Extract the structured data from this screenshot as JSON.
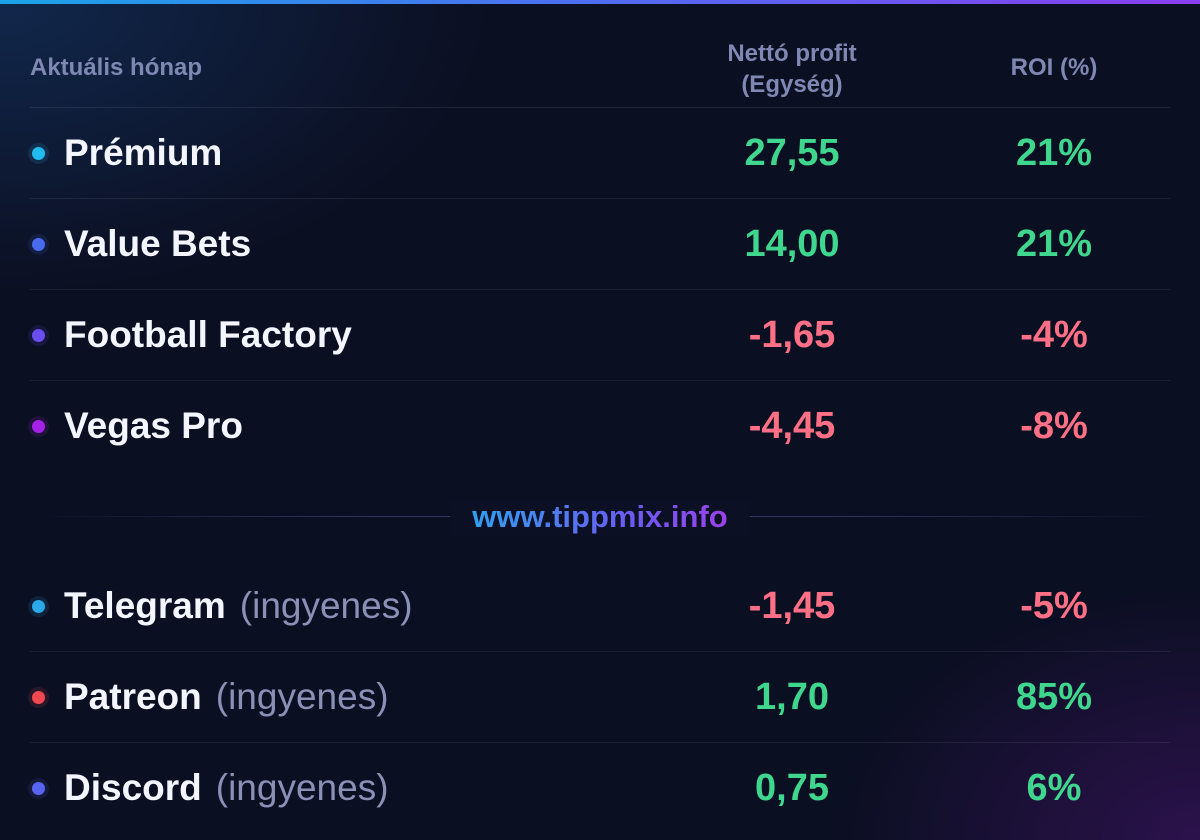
{
  "header": {
    "period_label": "Aktuális hónap",
    "profit_label_line1": "Nettó profit",
    "profit_label_line2": "(Egység)",
    "roi_label": "ROI (%)"
  },
  "paid_rows": [
    {
      "name": "Prémium",
      "profit": "27,55",
      "roi": "21%",
      "dot_color": "#22b8f0",
      "sign": "pos"
    },
    {
      "name": "Value Bets",
      "profit": "14,00",
      "roi": "21%",
      "dot_color": "#4a6af2",
      "sign": "pos"
    },
    {
      "name": "Football Factory",
      "profit": "-1,65",
      "roi": "-4%",
      "dot_color": "#6a4ef0",
      "sign": "neg"
    },
    {
      "name": "Vegas Pro",
      "profit": "-4,45",
      "roi": "-8%",
      "dot_color": "#a422e8",
      "sign": "neg"
    }
  ],
  "site_label": "www.tippmix.info",
  "free_rows": [
    {
      "name": "Telegram",
      "tag": "(ingyenes)",
      "profit": "-1,45",
      "roi": "-5%",
      "dot_color": "#2aa8e8",
      "sign": "neg"
    },
    {
      "name": "Patreon",
      "tag": "(ingyenes)",
      "profit": "1,70",
      "roi": "85%",
      "dot_color": "#f2484f",
      "sign": "pos"
    },
    {
      "name": "Discord",
      "tag": "(ingyenes)",
      "profit": "0,75",
      "roi": "6%",
      "dot_color": "#5865f2",
      "sign": "pos"
    }
  ],
  "colors": {
    "positive": "#3fd68e",
    "negative": "#ff6f85",
    "accent_start": "#1aa3e8",
    "accent_end": "#8a3ff0"
  }
}
